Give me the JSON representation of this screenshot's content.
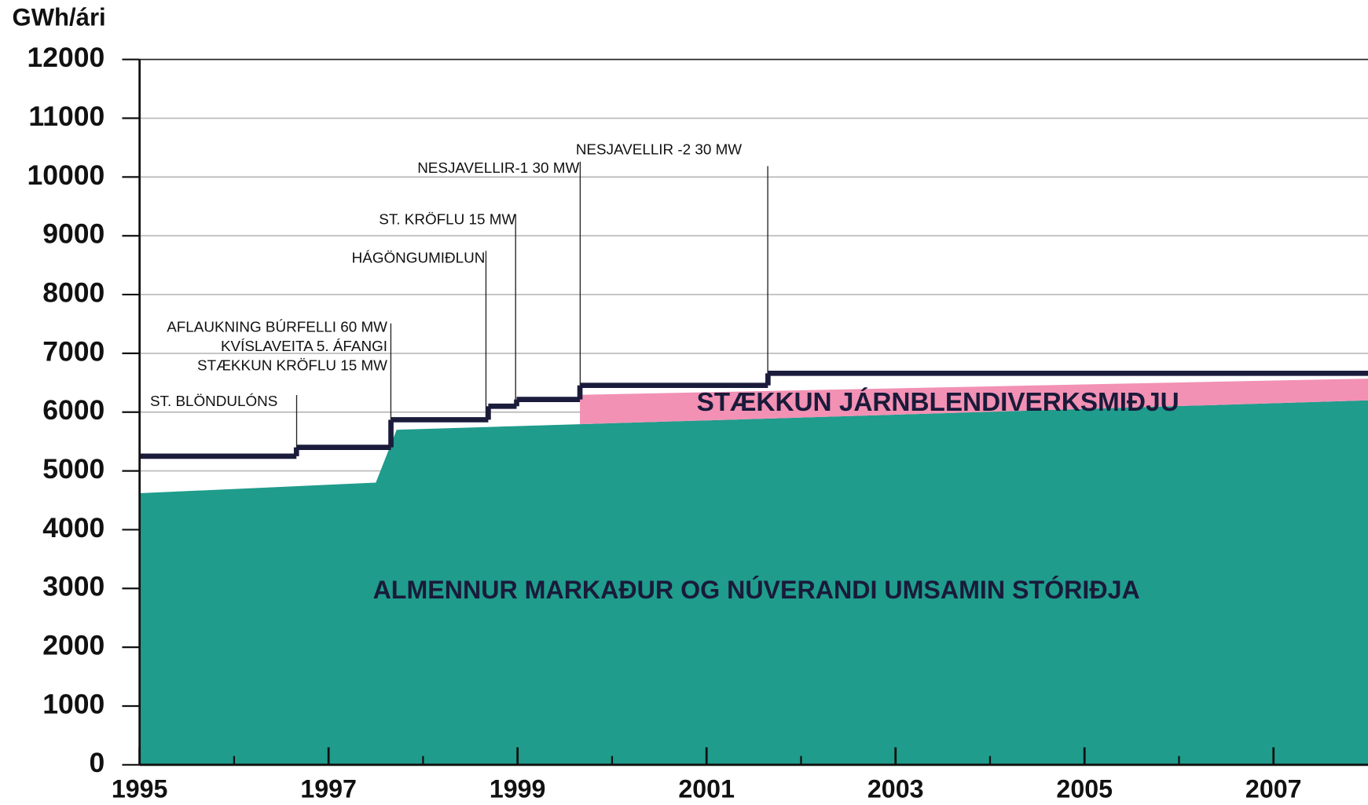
{
  "chart_data": {
    "type": "area",
    "y_axis_label": "GWh/ári",
    "xlim": [
      1995,
      2008
    ],
    "ylim": [
      0,
      12000
    ],
    "xticks": [
      1995,
      1997,
      1999,
      2001,
      2003,
      2005,
      2007
    ],
    "xminorticks": [
      1996,
      1998,
      2000,
      2002,
      2004,
      2006
    ],
    "yticks": [
      0,
      1000,
      2000,
      3000,
      4000,
      5000,
      6000,
      7000,
      8000,
      9000,
      10000,
      11000,
      12000
    ],
    "grid": true,
    "series": [
      {
        "name": "ALMENNUR MARKAÐUR OG NÚVERANDI UMSAMIN STÓRIÐJA",
        "color": "#1f9c8c",
        "x": [
          1995,
          1997.5,
          1997.72,
          2008
        ],
        "values": [
          4620,
          4800,
          5700,
          6200
        ]
      },
      {
        "name": "STÆKKUN JÁRNBLENDIVERKSMIÐJU",
        "color": "#f291b4",
        "stacked": true,
        "x": [
          1999.66,
          2008
        ],
        "values": [
          500,
          370
        ]
      },
      {
        "type": "step",
        "color": "#1b1b3c",
        "x": [
          1995,
          1996.66,
          1997.66,
          1998.69,
          1998.99,
          1999.66,
          2001.65
        ],
        "values": [
          5250,
          5400,
          5870,
          6100,
          6215,
          6455,
          6660
        ]
      }
    ],
    "annotations": [
      "ST. BLÖNDULÓNS",
      "AFLAUKNING BÚRFELLI 60 MW",
      "KVÍSLAVEITA  5. ÁFANGI",
      "STÆKKUN KRÖFLU 15 MW",
      "HÁGÖNGUMIÐLUN",
      "ST. KRÖFLU 15 MW",
      "NESJAVELLIR-1 30 MW",
      "NESJAVELLIR -2 30 MW"
    ]
  }
}
